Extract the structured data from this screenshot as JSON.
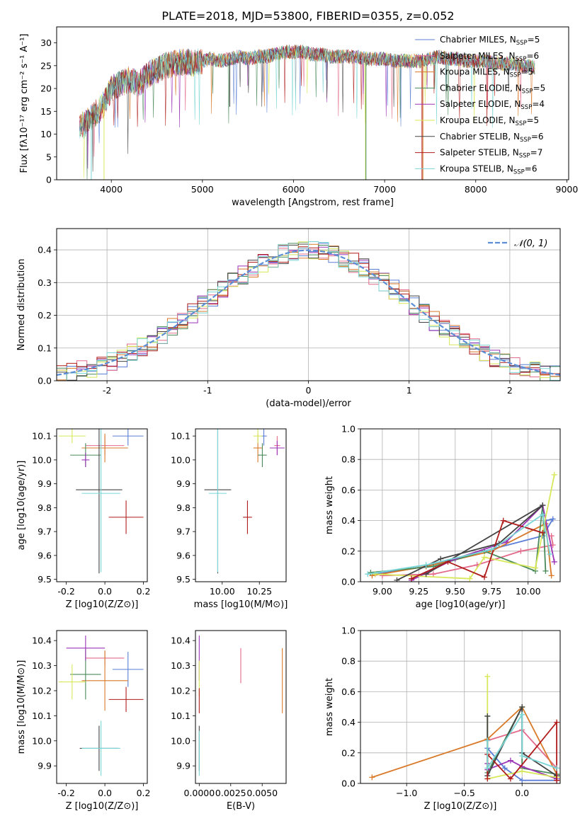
{
  "figure_title": "PLATE=2018, MJD=53800, FIBERID=0355, z=0.052",
  "colors": {
    "chab_miles": "#5b7fd6",
    "salp_miles": "#e36a8a",
    "krou_miles": "#d97a2a",
    "chab_elodie": "#4a8a5a",
    "salp_elodie": "#9a33b5",
    "krou_elodie": "#d8e85a",
    "chab_stelib": "#444444",
    "salp_stelib": "#b01c1c",
    "krou_stelib": "#7ad6d6",
    "gauss": "#5b8ed6"
  },
  "chart_data": [
    {
      "id": "spectrum",
      "type": "line",
      "title": "PLATE=2018, MJD=53800, FIBERID=0355, z=0.052",
      "xlabel": "wavelength [Angstrom, rest frame]",
      "ylabel": "Flux [fλ10⁻¹⁷ erg cm⁻² s⁻¹ A⁻¹]",
      "xlim": [
        3400,
        9020
      ],
      "ylim": [
        0,
        33.5
      ],
      "xticks": [
        4000,
        5000,
        6000,
        7000,
        8000,
        9000
      ],
      "yticks": [
        0,
        5,
        10,
        15,
        20,
        25,
        30
      ],
      "legend": "upper right",
      "continuum_x": [
        3650,
        3700,
        3800,
        3900,
        4000,
        4100,
        4200,
        4300,
        4400,
        4500,
        4600,
        4700,
        4800,
        4900,
        5000,
        5100,
        5200,
        5300,
        5400,
        5500,
        5600,
        5700,
        5800,
        5900,
        6000,
        6100,
        6200,
        6300,
        6400,
        6500,
        6600,
        6700,
        6800,
        6900,
        7000,
        7100,
        7200,
        7300,
        7400,
        7500,
        7600,
        7700,
        7800,
        7900,
        8000,
        8100,
        8200,
        8300,
        8400,
        8500,
        8600,
        8650
      ],
      "continuum_y": [
        12,
        12,
        14,
        16,
        20,
        21,
        22,
        21,
        23,
        24,
        25,
        25.5,
        26,
        25.5,
        26,
        26.5,
        26,
        26.5,
        27,
        26.5,
        27,
        27,
        27.5,
        28,
        28,
        28,
        27.5,
        27.5,
        27,
        27,
        27,
        27,
        26.5,
        26.5,
        26.5,
        26,
        26,
        26,
        26,
        26.5,
        27,
        26.5,
        26.5,
        26,
        26,
        26,
        25.5,
        25.5,
        25.5,
        25,
        25,
        24.5
      ],
      "series": [
        {
          "name": "Chabrier MILES, N",
          "nssp": "=5",
          "color": "#5b7fd6"
        },
        {
          "name": "Salpeter MILES, N",
          "nssp": "=6",
          "color": "#e36a8a"
        },
        {
          "name": "Kroupa MILES, N",
          "nssp": "=5",
          "color": "#d97a2a"
        },
        {
          "name": "Chabrier ELODIE, N",
          "nssp": "=5",
          "color": "#4a8a5a"
        },
        {
          "name": "Salpeter ELODIE, N",
          "nssp": "=4",
          "color": "#9a33b5"
        },
        {
          "name": "Kroupa ELODIE, N",
          "nssp": "=5",
          "color": "#d8e85a"
        },
        {
          "name": "Chabrier STELIB, N",
          "nssp": "=6",
          "color": "#444444"
        },
        {
          "name": "Salpeter STELIB, N",
          "nssp": "=7",
          "color": "#b01c1c"
        },
        {
          "name": "Kroupa STELIB, N",
          "nssp": "=6",
          "color": "#7ad6d6"
        }
      ]
    },
    {
      "id": "residuals",
      "type": "histogram",
      "xlabel": "(data-model)/error",
      "ylabel": "Normed distribution",
      "xlim": [
        -2.5,
        2.5
      ],
      "ylim": [
        0,
        0.465
      ],
      "xticks": [
        -2,
        -1,
        0,
        1,
        2
      ],
      "yticks": [
        0.0,
        0.1,
        0.2,
        0.3,
        0.4
      ],
      "grid": true,
      "legend": "upper right",
      "gauss_label": "𝒩(0, 1)",
      "bins": 50,
      "series_colors": [
        "#5b7fd6",
        "#e36a8a",
        "#d97a2a",
        "#4a8a5a",
        "#9a33b5",
        "#d8e85a",
        "#444444",
        "#b01c1c",
        "#7ad6d6"
      ]
    },
    {
      "id": "age_vs_z",
      "type": "errorbar",
      "xlabel": "Z [log10(Z/Z⊙)]",
      "ylabel": "age  [log10(age/yr)]",
      "xlim": [
        -0.25,
        0.22
      ],
      "ylim": [
        9.49,
        10.13
      ],
      "xticks": [
        -0.2,
        0.0,
        0.2
      ],
      "yticks": [
        9.5,
        9.6,
        9.7,
        9.8,
        9.9,
        10.0,
        10.1
      ],
      "points": [
        {
          "x": 0.12,
          "xerr": 0.08,
          "y": 10.1,
          "yerr": 0.04,
          "color": "#5b7fd6"
        },
        {
          "x": 0.0,
          "xerr": 0.1,
          "y": 10.06,
          "yerr": 0.04,
          "color": "#e36a8a"
        },
        {
          "x": 0.0,
          "xerr": 0.12,
          "y": 10.05,
          "yerr": 0.06,
          "color": "#d97a2a"
        },
        {
          "x": -0.1,
          "xerr": 0.08,
          "y": 10.02,
          "yerr": 0.05,
          "color": "#4a8a5a"
        },
        {
          "x": -0.1,
          "xerr": 0.02,
          "y": 10.0,
          "yerr": 0.03,
          "color": "#9a33b5"
        },
        {
          "x": -0.17,
          "xerr": 0.07,
          "y": 10.1,
          "yerr": 0.03,
          "color": "#d8e85a"
        },
        {
          "x": -0.03,
          "xerr": 0.12,
          "y": 9.875,
          "yerr": 0.35,
          "color": "#444444"
        },
        {
          "x": 0.11,
          "xerr": 0.09,
          "y": 9.76,
          "yerr": 0.07,
          "color": "#b01c1c"
        },
        {
          "x": -0.02,
          "xerr": 0.1,
          "y": 9.86,
          "yerr": 0.33,
          "color": "#7ad6d6"
        }
      ]
    },
    {
      "id": "age_vs_mass",
      "type": "errorbar",
      "xlabel": "mass [log10(M/M⊙)]",
      "ylabel": "",
      "xlim": [
        9.82,
        10.43
      ],
      "ylim": [
        9.49,
        10.13
      ],
      "xticks": [
        10.0,
        10.25
      ],
      "yticks": [
        9.5,
        9.6,
        9.7,
        9.8,
        9.9,
        10.0,
        10.1
      ],
      "points": [
        {
          "x": 10.28,
          "xerr": 0.02,
          "y": 10.1,
          "yerr": 0.04,
          "color": "#5b7fd6"
        },
        {
          "x": 10.37,
          "xerr": 0.02,
          "y": 10.06,
          "yerr": 0.04,
          "color": "#e36a8a"
        },
        {
          "x": 10.24,
          "xerr": 0.03,
          "y": 10.05,
          "yerr": 0.06,
          "color": "#d97a2a"
        },
        {
          "x": 10.27,
          "xerr": 0.03,
          "y": 10.02,
          "yerr": 0.05,
          "color": "#4a8a5a"
        },
        {
          "x": 10.37,
          "xerr": 0.05,
          "y": 10.05,
          "yerr": 0.03,
          "color": "#9a33b5"
        },
        {
          "x": 10.24,
          "xerr": 0.03,
          "y": 10.1,
          "yerr": 0.03,
          "color": "#d8e85a"
        },
        {
          "x": 9.97,
          "xerr": 0.09,
          "y": 9.875,
          "yerr": 0.35,
          "color": "#444444"
        },
        {
          "x": 10.17,
          "xerr": 0.03,
          "y": 9.76,
          "yerr": 0.07,
          "color": "#b01c1c"
        },
        {
          "x": 9.97,
          "xerr": 0.06,
          "y": 9.86,
          "yerr": 0.33,
          "color": "#7ad6d6"
        }
      ]
    },
    {
      "id": "weight_vs_age",
      "type": "line",
      "xlabel": "age  [log10(age/yr)]",
      "ylabel": "mass weight",
      "xlim": [
        8.85,
        10.22
      ],
      "ylim": [
        0,
        1.0
      ],
      "xticks": [
        9.0,
        9.25,
        9.5,
        9.75,
        10.0
      ],
      "yticks": [
        0.0,
        0.2,
        0.4,
        0.6,
        0.8,
        1.0
      ],
      "grid": true,
      "series": [
        {
          "color": "#5b7fd6",
          "x": [
            8.95,
            9.3,
            9.7,
            10.1,
            10.17,
            10.12
          ],
          "y": [
            0.05,
            0.1,
            0.2,
            0.3,
            0.41,
            0.4
          ]
        },
        {
          "color": "#e36a8a",
          "x": [
            9.0,
            9.35,
            9.65,
            9.95,
            10.17,
            10.16
          ],
          "y": [
            0.04,
            0.05,
            0.11,
            0.2,
            0.24,
            0.3
          ]
        },
        {
          "color": "#d97a2a",
          "x": [
            8.93,
            9.3,
            9.75,
            10.12,
            10.16
          ],
          "y": [
            0.04,
            0.1,
            0.2,
            0.38,
            0.04
          ]
        },
        {
          "color": "#4a8a5a",
          "x": [
            8.92,
            9.35,
            9.7,
            10.05,
            10.1,
            10.12
          ],
          "y": [
            0.06,
            0.1,
            0.2,
            0.07,
            0.5,
            0.07
          ]
        },
        {
          "color": "#9a33b5",
          "x": [
            9.2,
            9.5,
            9.85,
            10.1,
            10.18
          ],
          "y": [
            0.01,
            0.15,
            0.26,
            0.5,
            0.13
          ]
        },
        {
          "color": "#d8e85a",
          "x": [
            8.95,
            9.6,
            9.7,
            10.05,
            10.18
          ],
          "y": [
            0.05,
            0.02,
            0.16,
            0.09,
            0.7
          ]
        },
        {
          "color": "#444444",
          "x": [
            9.1,
            9.4,
            9.8,
            10.1,
            9.3
          ],
          "y": [
            0.01,
            0.15,
            0.25,
            0.5,
            0.05
          ]
        },
        {
          "color": "#b01c1c",
          "x": [
            9.2,
            9.45,
            9.7,
            9.83,
            10.1
          ],
          "y": [
            0.02,
            0.13,
            0.03,
            0.4,
            0.32
          ]
        },
        {
          "color": "#7ad6d6",
          "x": [
            8.9,
            9.3,
            9.75,
            10.1,
            10.15
          ],
          "y": [
            0.05,
            0.11,
            0.21,
            0.44,
            0.18
          ]
        }
      ]
    },
    {
      "id": "mass_vs_z",
      "type": "errorbar",
      "xlabel": "Z [log10(Z/Z⊙)]",
      "ylabel": "mass [log10(M/M⊙)]",
      "xlim": [
        -0.25,
        0.22
      ],
      "ylim": [
        9.83,
        10.44
      ],
      "xticks": [
        -0.2,
        0.0,
        0.2
      ],
      "yticks": [
        9.9,
        10.0,
        10.1,
        10.2,
        10.3,
        10.4
      ],
      "points": [
        {
          "x": 0.12,
          "xerr": 0.08,
          "y": 10.285,
          "yerr": 0.07,
          "color": "#5b7fd6"
        },
        {
          "x": 0.0,
          "xerr": 0.1,
          "y": 10.33,
          "yerr": 0.03,
          "color": "#e36a8a"
        },
        {
          "x": 0.0,
          "xerr": 0.12,
          "y": 10.24,
          "yerr": 0.12,
          "color": "#d97a2a"
        },
        {
          "x": -0.1,
          "xerr": 0.08,
          "y": 10.265,
          "yerr": 0.1,
          "color": "#4a8a5a"
        },
        {
          "x": -0.1,
          "xerr": 0.1,
          "y": 10.37,
          "yerr": 0.05,
          "color": "#9a33b5"
        },
        {
          "x": -0.17,
          "xerr": 0.07,
          "y": 10.235,
          "yerr": 0.07,
          "color": "#d8e85a"
        },
        {
          "x": -0.03,
          "xerr": 0.1,
          "y": 9.97,
          "yerr": 0.09,
          "color": "#444444"
        },
        {
          "x": 0.11,
          "xerr": 0.09,
          "y": 10.165,
          "yerr": 0.05,
          "color": "#b01c1c"
        },
        {
          "x": -0.02,
          "xerr": 0.1,
          "y": 9.97,
          "yerr": 0.11,
          "color": "#7ad6d6"
        }
      ]
    },
    {
      "id": "mass_vs_ebv",
      "type": "errorbar",
      "xlabel": "E(B-V)",
      "ylabel": "",
      "xlim": [
        -0.0003,
        0.0069
      ],
      "ylim": [
        9.83,
        10.44
      ],
      "xticks": [
        0.0,
        0.0025,
        0.005
      ],
      "xticklabels": [
        "0.0000",
        "0.0025",
        "0.0050"
      ],
      "yticks": [
        9.9,
        10.0,
        10.1,
        10.2,
        10.3,
        10.4
      ],
      "points": [
        {
          "x": 0.0,
          "xerr": 0,
          "y": 10.33,
          "yerr": 0.09,
          "color": "#9a33b5"
        },
        {
          "x": 0.0,
          "xerr": 0,
          "y": 10.25,
          "yerr": 0.07,
          "color": "#d8e85a"
        },
        {
          "x": 0.0,
          "xerr": 0,
          "y": 10.16,
          "yerr": 0.05,
          "color": "#b01c1c"
        },
        {
          "x": 0.0,
          "xerr": 0,
          "y": 9.97,
          "yerr": 0.09,
          "color": "#444444"
        },
        {
          "x": 0.0,
          "xerr": 0,
          "y": 9.95,
          "yerr": 0.09,
          "color": "#7ad6d6"
        },
        {
          "x": 0.0033,
          "xerr": 0,
          "y": 10.3,
          "yerr": 0.07,
          "color": "#e36a8a"
        },
        {
          "x": 0.0066,
          "xerr": 0,
          "y": 10.24,
          "yerr": 0.13,
          "color": "#d97a2a"
        }
      ]
    },
    {
      "id": "weight_vs_z",
      "type": "line",
      "xlabel": "Z [log10(Z/Z⊙)]",
      "ylabel": "mass weight",
      "xlim": [
        -1.4,
        0.33
      ],
      "ylim": [
        0,
        1.0
      ],
      "xticks": [
        -1.0,
        -0.5,
        0.0
      ],
      "yticks": [
        0.0,
        0.2,
        0.4,
        0.6,
        0.8,
        1.0
      ],
      "grid": true,
      "series": [
        {
          "color": "#5b7fd6",
          "x": [
            -0.3,
            -0.3,
            -0.15,
            0.0,
            0.3,
            0.3
          ],
          "y": [
            0.05,
            0.23,
            0.1,
            0.02,
            0.02,
            0.05
          ]
        },
        {
          "color": "#e36a8a",
          "x": [
            -0.3,
            0.0,
            0.3,
            0.3
          ],
          "y": [
            0.28,
            0.35,
            0.1,
            0.02
          ]
        },
        {
          "color": "#d97a2a",
          "x": [
            -1.3,
            -0.3,
            0.0,
            0.3
          ],
          "y": [
            0.04,
            0.29,
            0.5,
            0.06
          ]
        },
        {
          "color": "#4a8a5a",
          "x": [
            -0.3,
            -0.3,
            0.0,
            0.0,
            0.3
          ],
          "y": [
            0.44,
            0.07,
            0.5,
            0.1,
            0.06
          ]
        },
        {
          "color": "#9a33b5",
          "x": [
            -0.3,
            -0.3,
            -0.1,
            0.0,
            0.3
          ],
          "y": [
            0.13,
            0.09,
            0.15,
            0.11,
            0.03
          ]
        },
        {
          "color": "#d8e85a",
          "x": [
            -0.3,
            -0.3,
            0.0,
            0.3
          ],
          "y": [
            0.7,
            0.03,
            0.08,
            0.04
          ]
        },
        {
          "color": "#444444",
          "x": [
            -0.3,
            -0.3,
            0.0,
            0.0,
            0.3
          ],
          "y": [
            0.44,
            0.05,
            0.5,
            0.2,
            0.05
          ]
        },
        {
          "color": "#b01c1c",
          "x": [
            -0.3,
            -0.3,
            -0.1,
            0.3,
            0.3
          ],
          "y": [
            0.03,
            0.19,
            0.03,
            0.4,
            0.02
          ]
        },
        {
          "color": "#7ad6d6",
          "x": [
            -0.3,
            -0.3,
            0.0,
            0.0,
            0.3
          ],
          "y": [
            0.28,
            0.1,
            0.45,
            0.18,
            0.1
          ]
        }
      ]
    }
  ]
}
